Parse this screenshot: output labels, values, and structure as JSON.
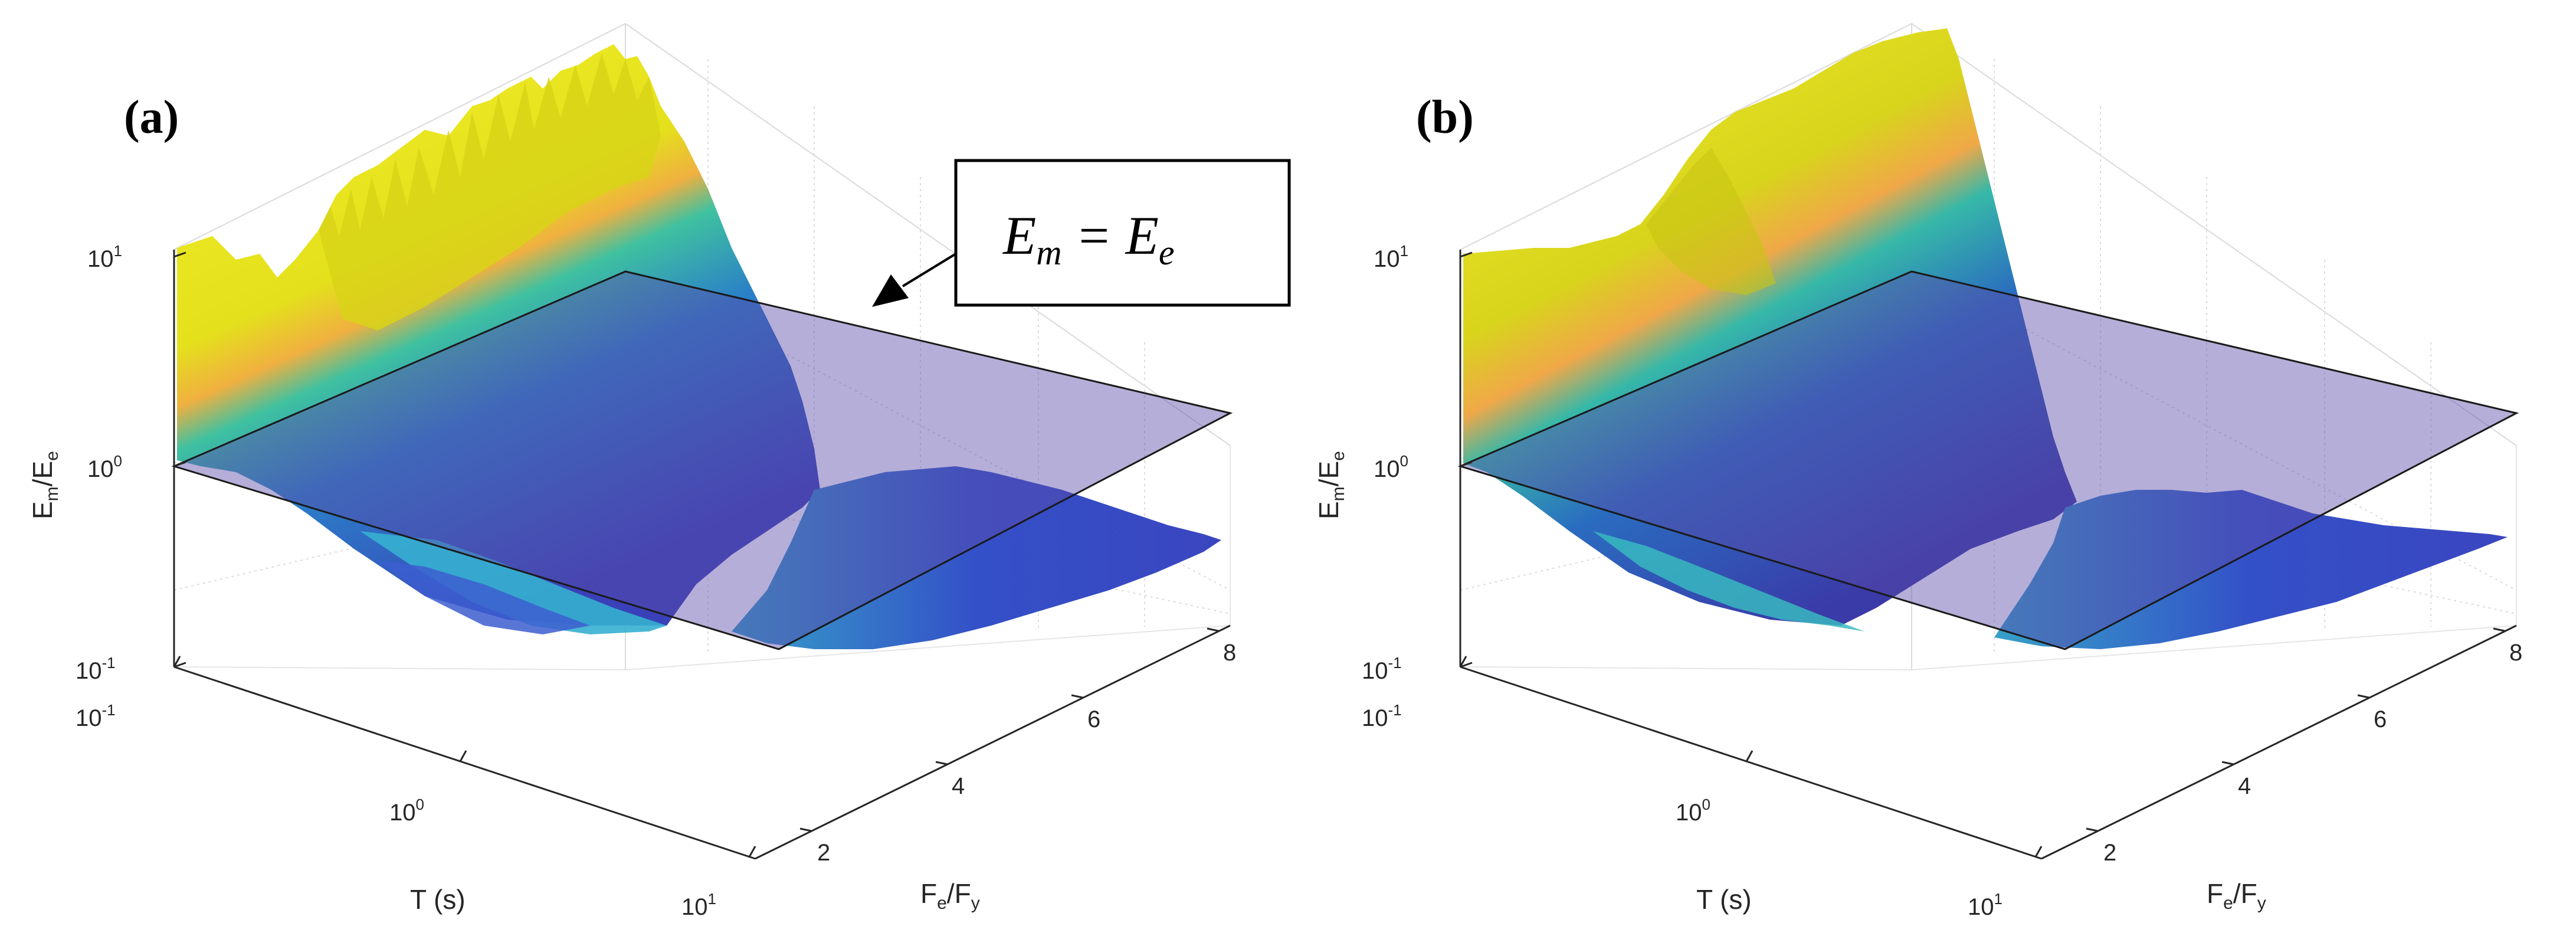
{
  "chart_data": [
    {
      "type": "surface3d",
      "panel_label": "(a)",
      "zlabel": "Em/Ee",
      "zlabel_main": "E",
      "zlabel_sub_m": "m",
      "zlabel_slash": "/E",
      "zlabel_sub_e": "e",
      "xlabel": "T (s)",
      "ylabel": "Fe/Fy",
      "ylabel_F1": "F",
      "ylabel_sub_e": "e",
      "ylabel_slash": "/F",
      "ylabel_sub_y": "y",
      "zscale": "log",
      "xscale": "log",
      "zlim": [
        0.1,
        10
      ],
      "xlim": [
        0.1,
        10
      ],
      "ylim": [
        1,
        8
      ],
      "z_ticks": [
        {
          "base": "10",
          "exp": "1"
        },
        {
          "base": "10",
          "exp": "0"
        },
        {
          "base": "10",
          "exp": "-1"
        }
      ],
      "x_ticks": [
        {
          "base": "10",
          "exp": "-1"
        },
        {
          "base": "10",
          "exp": "0"
        },
        {
          "base": "10",
          "exp": "1"
        }
      ],
      "y_ticks": [
        "2",
        "4",
        "6",
        "8"
      ],
      "reference_plane": {
        "value": 1,
        "label": "Em = Ee"
      },
      "annotation": {
        "eq_lhs": "E",
        "eq_lhs_sub": "m",
        "eq_op": " = ",
        "eq_rhs": "E",
        "eq_rhs_sub": "e"
      },
      "surface_colors": {
        "high": "#f2ef1c",
        "mid": "#2ec4a6",
        "low": "#3b4fd0",
        "transition": "#f0b040"
      }
    },
    {
      "type": "surface3d",
      "panel_label": "(b)",
      "zlabel": "Em/Ee",
      "zlabel_main": "E",
      "zlabel_sub_m": "m",
      "zlabel_slash": "/E",
      "zlabel_sub_e": "e",
      "xlabel": "T (s)",
      "ylabel": "Fe/Fy",
      "ylabel_F1": "F",
      "ylabel_sub_e": "e",
      "ylabel_slash": "/F",
      "ylabel_sub_y": "y",
      "zscale": "log",
      "xscale": "log",
      "zlim": [
        0.1,
        10
      ],
      "xlim": [
        0.1,
        10
      ],
      "ylim": [
        1,
        8
      ],
      "z_ticks": [
        {
          "base": "10",
          "exp": "1"
        },
        {
          "base": "10",
          "exp": "0"
        },
        {
          "base": "10",
          "exp": "-1"
        }
      ],
      "x_ticks": [
        {
          "base": "10",
          "exp": "-1"
        },
        {
          "base": "10",
          "exp": "0"
        },
        {
          "base": "10",
          "exp": "1"
        }
      ],
      "y_ticks": [
        "2",
        "4",
        "6",
        "8"
      ],
      "reference_plane": {
        "value": 1
      },
      "surface_colors": {
        "high": "#f2ef1c",
        "mid": "#2ec4a6",
        "low": "#3b4fd0",
        "transition": "#f0b040"
      }
    }
  ]
}
